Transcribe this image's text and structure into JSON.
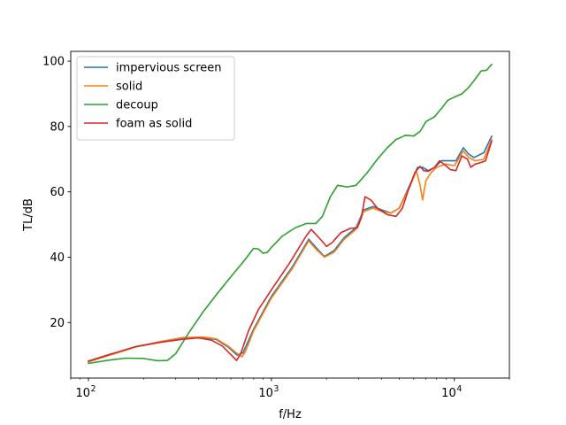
{
  "chart_data": {
    "type": "line",
    "xlabel": "f/Hz",
    "ylabel": "TL/dB",
    "xscale": "log",
    "xlim": [
      80,
      20000
    ],
    "ylim": [
      3,
      103
    ],
    "xticks": [
      {
        "value": 100,
        "base": "10",
        "exp": "2"
      },
      {
        "value": 1000,
        "base": "10",
        "exp": "3"
      },
      {
        "value": 10000,
        "base": "10",
        "exp": "4"
      }
    ],
    "yticks": [
      20,
      40,
      60,
      80,
      100
    ],
    "grid": false,
    "legend": {
      "position": "top-left"
    },
    "series": [
      {
        "name": "impervious screen",
        "color": "#1f77b4",
        "points": [
          [
            100,
            8
          ],
          [
            130,
            10
          ],
          [
            180,
            12.5
          ],
          [
            250,
            14.2
          ],
          [
            330,
            15.4
          ],
          [
            420,
            15.5
          ],
          [
            500,
            14.8
          ],
          [
            580,
            12.5
          ],
          [
            650,
            10
          ],
          [
            700,
            10.8
          ],
          [
            800,
            18
          ],
          [
            1000,
            28
          ],
          [
            1300,
            37
          ],
          [
            1600,
            45.5
          ],
          [
            1750,
            43
          ],
          [
            1950,
            40.2
          ],
          [
            2200,
            42
          ],
          [
            2500,
            46
          ],
          [
            2900,
            49
          ],
          [
            3200,
            54.5
          ],
          [
            3600,
            55.5
          ],
          [
            4000,
            54.5
          ],
          [
            4500,
            53.5
          ],
          [
            5000,
            55
          ],
          [
            5700,
            62
          ],
          [
            6300,
            67.5
          ],
          [
            6700,
            67.5
          ],
          [
            7200,
            66.5
          ],
          [
            7800,
            67.5
          ],
          [
            8500,
            69.5
          ],
          [
            9500,
            69.5
          ],
          [
            10200,
            69.5
          ],
          [
            11200,
            73.5
          ],
          [
            12000,
            71.5
          ],
          [
            12800,
            70.5
          ],
          [
            14500,
            72
          ],
          [
            16000,
            77
          ]
        ]
      },
      {
        "name": "solid",
        "color": "#ff7f0e",
        "points": [
          [
            100,
            8
          ],
          [
            130,
            10
          ],
          [
            180,
            12.5
          ],
          [
            250,
            14.2
          ],
          [
            330,
            15.3
          ],
          [
            420,
            15.6
          ],
          [
            500,
            15
          ],
          [
            580,
            12.8
          ],
          [
            650,
            10.5
          ],
          [
            690,
            9.5
          ],
          [
            720,
            11
          ],
          [
            800,
            17.5
          ],
          [
            1000,
            27.5
          ],
          [
            1300,
            36.5
          ],
          [
            1600,
            45
          ],
          [
            1750,
            42.5
          ],
          [
            1950,
            40
          ],
          [
            2200,
            41.5
          ],
          [
            2500,
            45.5
          ],
          [
            2900,
            48.5
          ],
          [
            3200,
            54
          ],
          [
            3600,
            55
          ],
          [
            4000,
            54
          ],
          [
            4500,
            53.5
          ],
          [
            5000,
            55
          ],
          [
            5700,
            61.5
          ],
          [
            6200,
            66.5
          ],
          [
            6500,
            62
          ],
          [
            6700,
            57.5
          ],
          [
            7000,
            63.5
          ],
          [
            7500,
            66
          ],
          [
            8000,
            67.5
          ],
          [
            9000,
            68.5
          ],
          [
            10000,
            68
          ],
          [
            11200,
            72.5
          ],
          [
            12000,
            70.5
          ],
          [
            13000,
            69.5
          ],
          [
            14500,
            70
          ],
          [
            16000,
            76
          ]
        ]
      },
      {
        "name": "decoup",
        "color": "#2ca02c",
        "points": [
          [
            100,
            7.5
          ],
          [
            130,
            8.5
          ],
          [
            160,
            9.1
          ],
          [
            200,
            9
          ],
          [
            240,
            8.3
          ],
          [
            270,
            8.4
          ],
          [
            300,
            10.5
          ],
          [
            350,
            16.5
          ],
          [
            420,
            23
          ],
          [
            500,
            28.5
          ],
          [
            600,
            34
          ],
          [
            700,
            38.5
          ],
          [
            800,
            42.7
          ],
          [
            850,
            42.5
          ],
          [
            900,
            41.2
          ],
          [
            950,
            41.5
          ],
          [
            1000,
            43
          ],
          [
            1150,
            46.5
          ],
          [
            1350,
            49
          ],
          [
            1550,
            50.3
          ],
          [
            1750,
            50.3
          ],
          [
            1900,
            52.5
          ],
          [
            2100,
            58.5
          ],
          [
            2300,
            62
          ],
          [
            2600,
            61.5
          ],
          [
            2900,
            62
          ],
          [
            3300,
            65.5
          ],
          [
            3800,
            70
          ],
          [
            4300,
            73.5
          ],
          [
            4800,
            76
          ],
          [
            5400,
            77.3
          ],
          [
            6000,
            77.1
          ],
          [
            6500,
            78.5
          ],
          [
            7000,
            81.5
          ],
          [
            7800,
            83
          ],
          [
            8500,
            85.5
          ],
          [
            9200,
            88
          ],
          [
            10000,
            89
          ],
          [
            11000,
            90
          ],
          [
            12000,
            92
          ],
          [
            13000,
            94.5
          ],
          [
            14000,
            97
          ],
          [
            15000,
            97.2
          ],
          [
            16000,
            99
          ]
        ]
      },
      {
        "name": "foam as solid",
        "color": "#d62728",
        "points": [
          [
            100,
            8.2
          ],
          [
            130,
            10.2
          ],
          [
            180,
            12.6
          ],
          [
            250,
            14
          ],
          [
            330,
            14.9
          ],
          [
            400,
            15.3
          ],
          [
            470,
            14.6
          ],
          [
            540,
            12.8
          ],
          [
            610,
            9.8
          ],
          [
            645,
            8.4
          ],
          [
            680,
            10.5
          ],
          [
            750,
            17.5
          ],
          [
            850,
            24
          ],
          [
            1000,
            30
          ],
          [
            1250,
            38
          ],
          [
            1550,
            46.5
          ],
          [
            1650,
            48.5
          ],
          [
            1750,
            47
          ],
          [
            1900,
            44.8
          ],
          [
            2000,
            43.3
          ],
          [
            2150,
            44.5
          ],
          [
            2400,
            47.5
          ],
          [
            2700,
            48.8
          ],
          [
            2950,
            49
          ],
          [
            3100,
            52
          ],
          [
            3250,
            58.5
          ],
          [
            3500,
            57.5
          ],
          [
            3800,
            55
          ],
          [
            4300,
            53
          ],
          [
            4800,
            52.5
          ],
          [
            5200,
            55
          ],
          [
            5600,
            60.5
          ],
          [
            6100,
            66
          ],
          [
            6500,
            67.8
          ],
          [
            6800,
            66.5
          ],
          [
            7200,
            66.3
          ],
          [
            7800,
            67.5
          ],
          [
            8300,
            69.5
          ],
          [
            9000,
            68
          ],
          [
            9500,
            66.8
          ],
          [
            10200,
            66.5
          ],
          [
            11000,
            71
          ],
          [
            11800,
            70
          ],
          [
            12300,
            67.5
          ],
          [
            13000,
            68.5
          ],
          [
            14000,
            69
          ],
          [
            14800,
            69.5
          ],
          [
            16000,
            75.5
          ]
        ]
      }
    ]
  }
}
